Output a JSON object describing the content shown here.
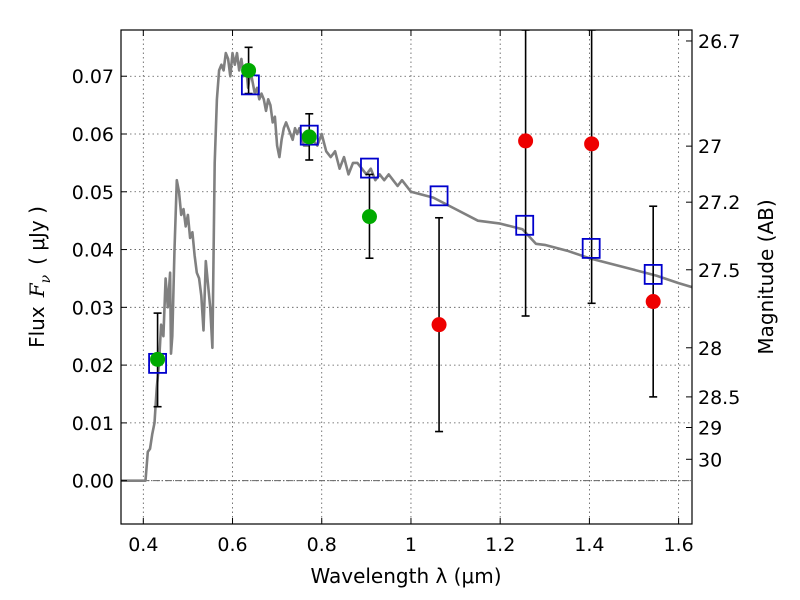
{
  "chart_data": {
    "type": "scatter",
    "xlabel": "Wavelength  λ (μm)",
    "ylabel_prefix": "Flux",
    "ylabel_var": "F",
    "ylabel_sub": "ν",
    "ylabel_unit": "( μJy )",
    "ylabel_right": "Magnitude (AB)",
    "xlim": [
      0.35,
      1.63
    ],
    "ylim": [
      -0.0075,
      0.078
    ],
    "x_ticks": [
      0.4,
      0.6,
      0.8,
      1.0,
      1.2,
      1.4,
      1.6
    ],
    "x_tick_labels": [
      "0.4",
      "0.6",
      "0.8",
      "1",
      "1.2",
      "1.4",
      "1.6"
    ],
    "y_ticks": [
      0.0,
      0.01,
      0.02,
      0.03,
      0.04,
      0.05,
      0.06,
      0.07
    ],
    "y_tick_labels": [
      "0.00",
      "0.01",
      "0.02",
      "0.03",
      "0.04",
      "0.05",
      "0.06",
      "0.07"
    ],
    "right_ticks": [
      {
        "label": "26.7",
        "flux": 0.0761
      },
      {
        "label": "27",
        "flux": 0.0579
      },
      {
        "label": "27.2",
        "flux": 0.0482
      },
      {
        "label": "27.5",
        "flux": 0.0365
      },
      {
        "label": "28",
        "flux": 0.023
      },
      {
        "label": "28.5",
        "flux": 0.0145
      },
      {
        "label": "29",
        "flux": 0.0092
      },
      {
        "label": "30",
        "flux": 0.0037
      }
    ],
    "grid": true,
    "colors": {
      "template": "#808080",
      "model": "#0000cc",
      "detected": "#00aa00",
      "upper": "#ee0000",
      "errorbar": "#000000",
      "zero_line": "#666666"
    },
    "series": [
      {
        "kind": "line",
        "points": [
          [
            0.35,
            0.0
          ],
          [
            0.4,
            0.0
          ],
          [
            0.405,
            0.0
          ],
          [
            0.41,
            0.005
          ],
          [
            0.415,
            0.0055
          ],
          [
            0.42,
            0.008
          ],
          [
            0.425,
            0.01
          ],
          [
            0.43,
            0.016
          ],
          [
            0.435,
            0.02
          ],
          [
            0.44,
            0.027
          ],
          [
            0.445,
            0.025
          ],
          [
            0.45,
            0.035
          ],
          [
            0.455,
            0.03
          ],
          [
            0.46,
            0.036
          ],
          [
            0.462,
            0.022
          ],
          [
            0.465,
            0.025
          ],
          [
            0.47,
            0.04
          ],
          [
            0.475,
            0.052
          ],
          [
            0.48,
            0.05
          ],
          [
            0.485,
            0.046
          ],
          [
            0.49,
            0.047
          ],
          [
            0.495,
            0.044
          ],
          [
            0.5,
            0.046
          ],
          [
            0.505,
            0.042
          ],
          [
            0.51,
            0.043
          ],
          [
            0.515,
            0.039
          ],
          [
            0.52,
            0.036
          ],
          [
            0.525,
            0.035
          ],
          [
            0.53,
            0.032
          ],
          [
            0.535,
            0.026
          ],
          [
            0.54,
            0.038
          ],
          [
            0.545,
            0.034
          ],
          [
            0.55,
            0.03
          ],
          [
            0.555,
            0.023
          ],
          [
            0.56,
            0.055
          ],
          [
            0.565,
            0.066
          ],
          [
            0.57,
            0.071
          ],
          [
            0.575,
            0.072
          ],
          [
            0.58,
            0.071
          ],
          [
            0.585,
            0.074
          ],
          [
            0.59,
            0.073
          ],
          [
            0.595,
            0.07
          ],
          [
            0.6,
            0.074
          ],
          [
            0.605,
            0.072
          ],
          [
            0.61,
            0.074
          ],
          [
            0.615,
            0.071
          ],
          [
            0.62,
            0.073
          ],
          [
            0.625,
            0.07
          ],
          [
            0.63,
            0.072
          ],
          [
            0.635,
            0.068
          ],
          [
            0.64,
            0.071
          ],
          [
            0.645,
            0.069
          ],
          [
            0.65,
            0.067
          ],
          [
            0.655,
            0.068
          ],
          [
            0.66,
            0.066
          ],
          [
            0.665,
            0.067
          ],
          [
            0.67,
            0.066
          ],
          [
            0.675,
            0.064
          ],
          [
            0.68,
            0.066
          ],
          [
            0.685,
            0.065
          ],
          [
            0.69,
            0.062
          ],
          [
            0.695,
            0.063
          ],
          [
            0.7,
            0.058
          ],
          [
            0.705,
            0.056
          ],
          [
            0.71,
            0.059
          ],
          [
            0.715,
            0.061
          ],
          [
            0.72,
            0.062
          ],
          [
            0.725,
            0.061
          ],
          [
            0.73,
            0.06
          ],
          [
            0.735,
            0.059
          ],
          [
            0.74,
            0.061
          ],
          [
            0.745,
            0.06
          ],
          [
            0.75,
            0.061
          ],
          [
            0.76,
            0.058
          ],
          [
            0.77,
            0.058
          ],
          [
            0.78,
            0.059
          ],
          [
            0.79,
            0.058
          ],
          [
            0.8,
            0.06
          ],
          [
            0.81,
            0.057
          ],
          [
            0.82,
            0.056
          ],
          [
            0.83,
            0.057
          ],
          [
            0.84,
            0.054
          ],
          [
            0.85,
            0.056
          ],
          [
            0.86,
            0.053
          ],
          [
            0.87,
            0.055
          ],
          [
            0.88,
            0.055
          ],
          [
            0.89,
            0.054
          ],
          [
            0.9,
            0.053
          ],
          [
            0.91,
            0.054
          ],
          [
            0.92,
            0.052
          ],
          [
            0.93,
            0.053
          ],
          [
            0.94,
            0.052
          ],
          [
            0.95,
            0.053
          ],
          [
            0.96,
            0.052
          ],
          [
            0.97,
            0.051
          ],
          [
            0.98,
            0.052
          ],
          [
            1.0,
            0.05
          ],
          [
            1.05,
            0.049
          ],
          [
            1.1,
            0.047
          ],
          [
            1.15,
            0.045
          ],
          [
            1.2,
            0.0445
          ],
          [
            1.25,
            0.0435
          ],
          [
            1.28,
            0.041
          ],
          [
            1.3,
            0.0408
          ],
          [
            1.35,
            0.0398
          ],
          [
            1.4,
            0.0385
          ],
          [
            1.45,
            0.0375
          ],
          [
            1.5,
            0.0365
          ],
          [
            1.55,
            0.0355
          ],
          [
            1.6,
            0.0342
          ],
          [
            1.63,
            0.0335
          ]
        ]
      },
      {
        "kind": "squares",
        "points": [
          [
            0.432,
            0.0203
          ],
          [
            0.64,
            0.0685
          ],
          [
            0.772,
            0.0598
          ],
          [
            0.907,
            0.0541
          ],
          [
            1.063,
            0.0493
          ],
          [
            1.255,
            0.0442
          ],
          [
            1.404,
            0.0402
          ],
          [
            1.543,
            0.0357
          ]
        ]
      },
      {
        "kind": "detected",
        "points": [
          {
            "x": 0.432,
            "y": 0.021,
            "lo": 0.0128,
            "hi": 0.029
          },
          {
            "x": 0.636,
            "y": 0.071,
            "lo": 0.067,
            "hi": 0.075
          },
          {
            "x": 0.772,
            "y": 0.0595,
            "lo": 0.0555,
            "hi": 0.0635
          },
          {
            "x": 0.907,
            "y": 0.0457,
            "lo": 0.0385,
            "hi": 0.053
          }
        ]
      },
      {
        "kind": "upper",
        "points": [
          {
            "x": 1.063,
            "y": 0.027,
            "lo": 0.0085,
            "hi": 0.0455
          },
          {
            "x": 1.257,
            "y": 0.0588,
            "lo": 0.0285,
            "hi": 0.078
          },
          {
            "x": 1.405,
            "y": 0.0583,
            "lo": 0.0307,
            "hi": 0.078
          },
          {
            "x": 1.543,
            "y": 0.031,
            "lo": 0.0145,
            "hi": 0.0475
          }
        ]
      }
    ]
  }
}
